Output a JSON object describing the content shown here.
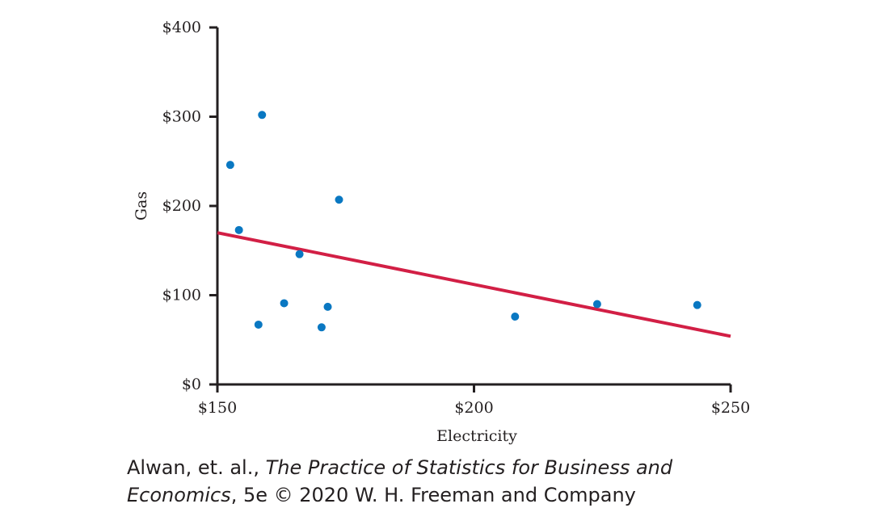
{
  "chart_data": {
    "type": "scatter",
    "title": "",
    "xlabel": "Electricity",
    "ylabel": "Gas",
    "xlim": [
      150,
      250
    ],
    "ylim": [
      0,
      400
    ],
    "x_ticks": [
      "$150",
      "$200",
      "$250"
    ],
    "x_tick_values": [
      150,
      200,
      250
    ],
    "y_ticks": [
      "$0",
      "$100",
      "$200",
      "$300",
      "$400"
    ],
    "y_tick_values": [
      0,
      100,
      200,
      300,
      400
    ],
    "grid": false,
    "series": [
      {
        "points": [
          {
            "x": 152.5,
            "y": 246
          },
          {
            "x": 154.2,
            "y": 173
          },
          {
            "x": 158.0,
            "y": 67
          },
          {
            "x": 158.7,
            "y": 302
          },
          {
            "x": 163.0,
            "y": 91
          },
          {
            "x": 166.0,
            "y": 146
          },
          {
            "x": 170.3,
            "y": 64
          },
          {
            "x": 171.5,
            "y": 87
          },
          {
            "x": 173.7,
            "y": 207
          },
          {
            "x": 208.0,
            "y": 76
          },
          {
            "x": 224.0,
            "y": 90
          },
          {
            "x": 243.5,
            "y": 89
          }
        ],
        "color": "#0a78c2"
      }
    ],
    "trend_line": {
      "x": [
        150,
        250
      ],
      "y": [
        170,
        54
      ],
      "color": "#d21f45"
    }
  },
  "credit": {
    "authors": "Alwan, et. al., ",
    "book_title_line1": "The Practice of Statistics for Business and",
    "book_title_line2": "Economics",
    "edition_and_publisher": ", 5e © 2020 W. H. Freeman and Company"
  }
}
